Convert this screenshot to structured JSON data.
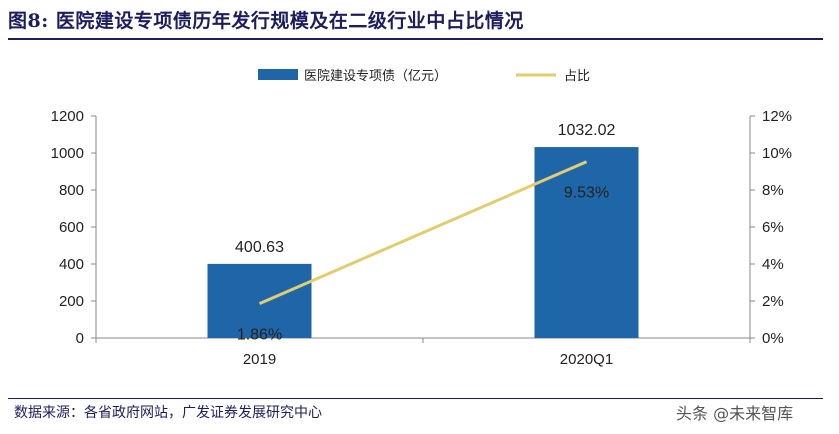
{
  "figure": {
    "title": "图8:  医院建设专项债历年发行规模及在二级行业中占比情况",
    "source": "数据来源：各省政府网站，广发证券发展研究中心",
    "watermark": "头条 @未来智库"
  },
  "chart_data": {
    "type": "bar",
    "categories": [
      "2019",
      "2020Q1"
    ],
    "series": [
      {
        "name": "医院建设专项债（亿元）",
        "type": "bar",
        "axis": "left",
        "values": [
          400.63,
          1032.02
        ],
        "labels": [
          "400.63",
          "1032.02"
        ],
        "color": "#1f66a8"
      },
      {
        "name": "占比",
        "type": "line",
        "axis": "right",
        "values": [
          1.86,
          9.53
        ],
        "labels": [
          "1.86%",
          "9.53%"
        ],
        "color": "#e2cd6e"
      }
    ],
    "y_left": {
      "min": 0,
      "max": 1200,
      "ticks": [
        "0",
        "200",
        "400",
        "600",
        "800",
        "1000",
        "1200"
      ]
    },
    "y_right": {
      "min": 0,
      "max": 12,
      "ticks": [
        "0%",
        "2%",
        "4%",
        "6%",
        "8%",
        "10%",
        "12%"
      ]
    },
    "legend_position": "top-center",
    "grid": false
  }
}
